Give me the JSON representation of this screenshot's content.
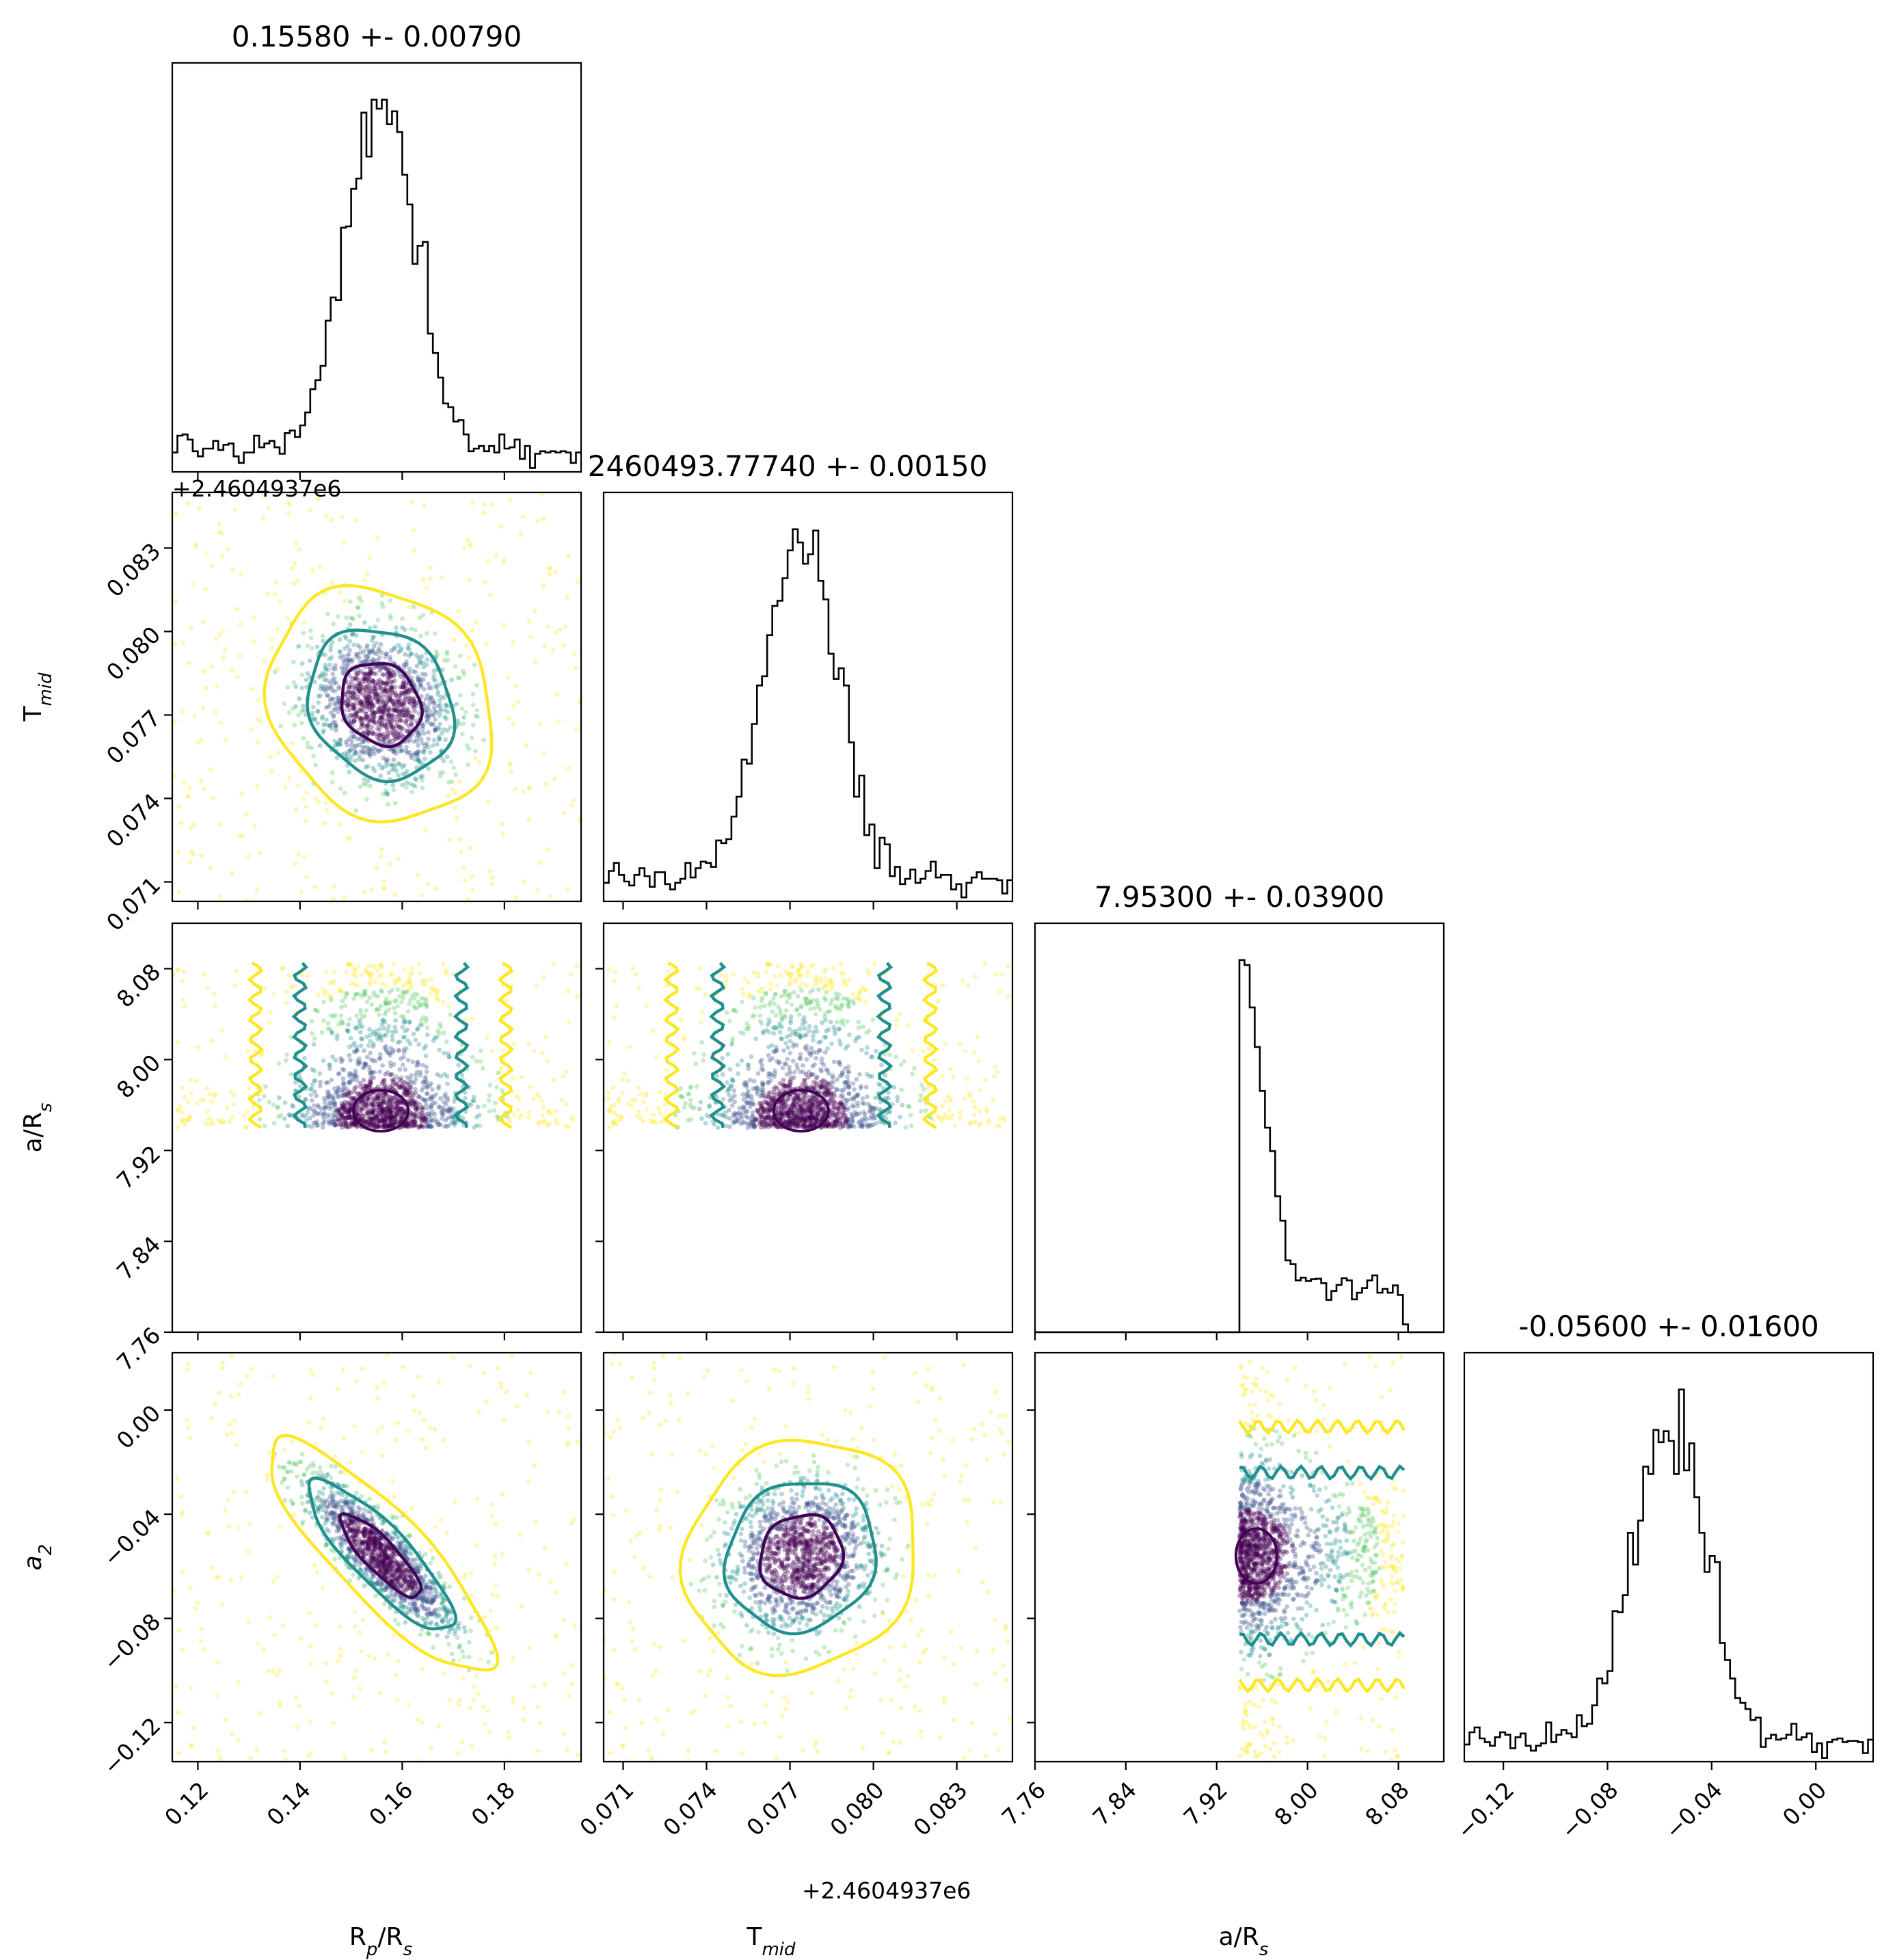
{
  "chart_data": {
    "type": "scatter",
    "subtype": "corner-plot",
    "parameters": [
      {
        "key": "rp",
        "label": "R",
        "sub": "p",
        "label_tail": "/R",
        "sub_tail": "s",
        "median": 0.1558,
        "sigma": 0.0079,
        "title": "0.15580 +- 0.00790",
        "range": [
          0.115,
          0.195
        ],
        "ticks": [
          0.12,
          0.14,
          0.16,
          0.18
        ],
        "tick_labels": [
          "0.12",
          "0.14",
          "0.16",
          "0.18"
        ]
      },
      {
        "key": "tmid",
        "label": "T",
        "sub": "mid",
        "label_tail": "",
        "sub_tail": "",
        "median": 0.0774,
        "sigma": 0.0015,
        "title": "2460493.77740 +- 0.00150",
        "offset_text": "+2.4604937e6",
        "range": [
          0.0703,
          0.085
        ],
        "ticks": [
          0.071,
          0.074,
          0.077,
          0.08,
          0.083
        ],
        "tick_labels": [
          "0.071",
          "0.074",
          "0.077",
          "0.080",
          "0.083"
        ]
      },
      {
        "key": "ars",
        "label": "a/R",
        "sub": "s",
        "label_tail": "",
        "sub_tail": "",
        "median": 7.953,
        "sigma": 0.039,
        "title": "7.95300 +- 0.03900",
        "range": [
          7.76,
          8.12
        ],
        "ticks": [
          7.76,
          7.84,
          7.92,
          8.0,
          8.08
        ],
        "tick_labels": [
          "7.76",
          "7.84",
          "7.92",
          "8.00",
          "8.08"
        ],
        "support": [
          7.94,
          8.085
        ]
      },
      {
        "key": "a2",
        "label": "a",
        "sub": "2",
        "label_tail": "",
        "sub_tail": "",
        "italic": true,
        "median": -0.056,
        "sigma": 0.016,
        "title": "-0.05600 +- 0.01600",
        "range": [
          -0.135,
          0.022
        ],
        "ticks": [
          -0.12,
          -0.08,
          -0.04,
          0.0
        ],
        "tick_labels": [
          "−0.12",
          "−0.08",
          "−0.04",
          "0.00"
        ]
      }
    ],
    "histograms": {
      "rp": {
        "x_range": [
          0.115,
          0.195
        ],
        "mode": 0.157,
        "shape": "peaked-with-wide-tails"
      },
      "tmid": {
        "x_range": [
          0.0703,
          0.085
        ],
        "mode": 0.0774,
        "shape": "peaked-with-wide-tails"
      },
      "ars": {
        "x_range": [
          7.76,
          8.12
        ],
        "mode": 7.95,
        "shape": "sharp-rise-then-decay",
        "support": [
          7.94,
          8.085
        ]
      },
      "a2": {
        "x_range": [
          -0.135,
          0.022
        ],
        "mode": -0.058,
        "shape": "peaked-with-wide-tails"
      }
    },
    "correlations": {
      "rp-tmid": -0.15,
      "rp-a2": -0.85,
      "tmid-a2": 0.1,
      "rp-ars": 0.0,
      "tmid-ars": 0.0,
      "ars-a2": 0.0
    },
    "contour_levels": [
      "1-sigma",
      "2-sigma",
      "3-sigma"
    ],
    "colors": {
      "inner": "#440154",
      "middle": "#21908d",
      "outer": "#fde725",
      "points_scale": [
        "#440154",
        "#3b528b",
        "#21908d",
        "#5dc963",
        "#fde725"
      ],
      "frame": "#000000"
    },
    "grid": false,
    "legend": "none"
  }
}
